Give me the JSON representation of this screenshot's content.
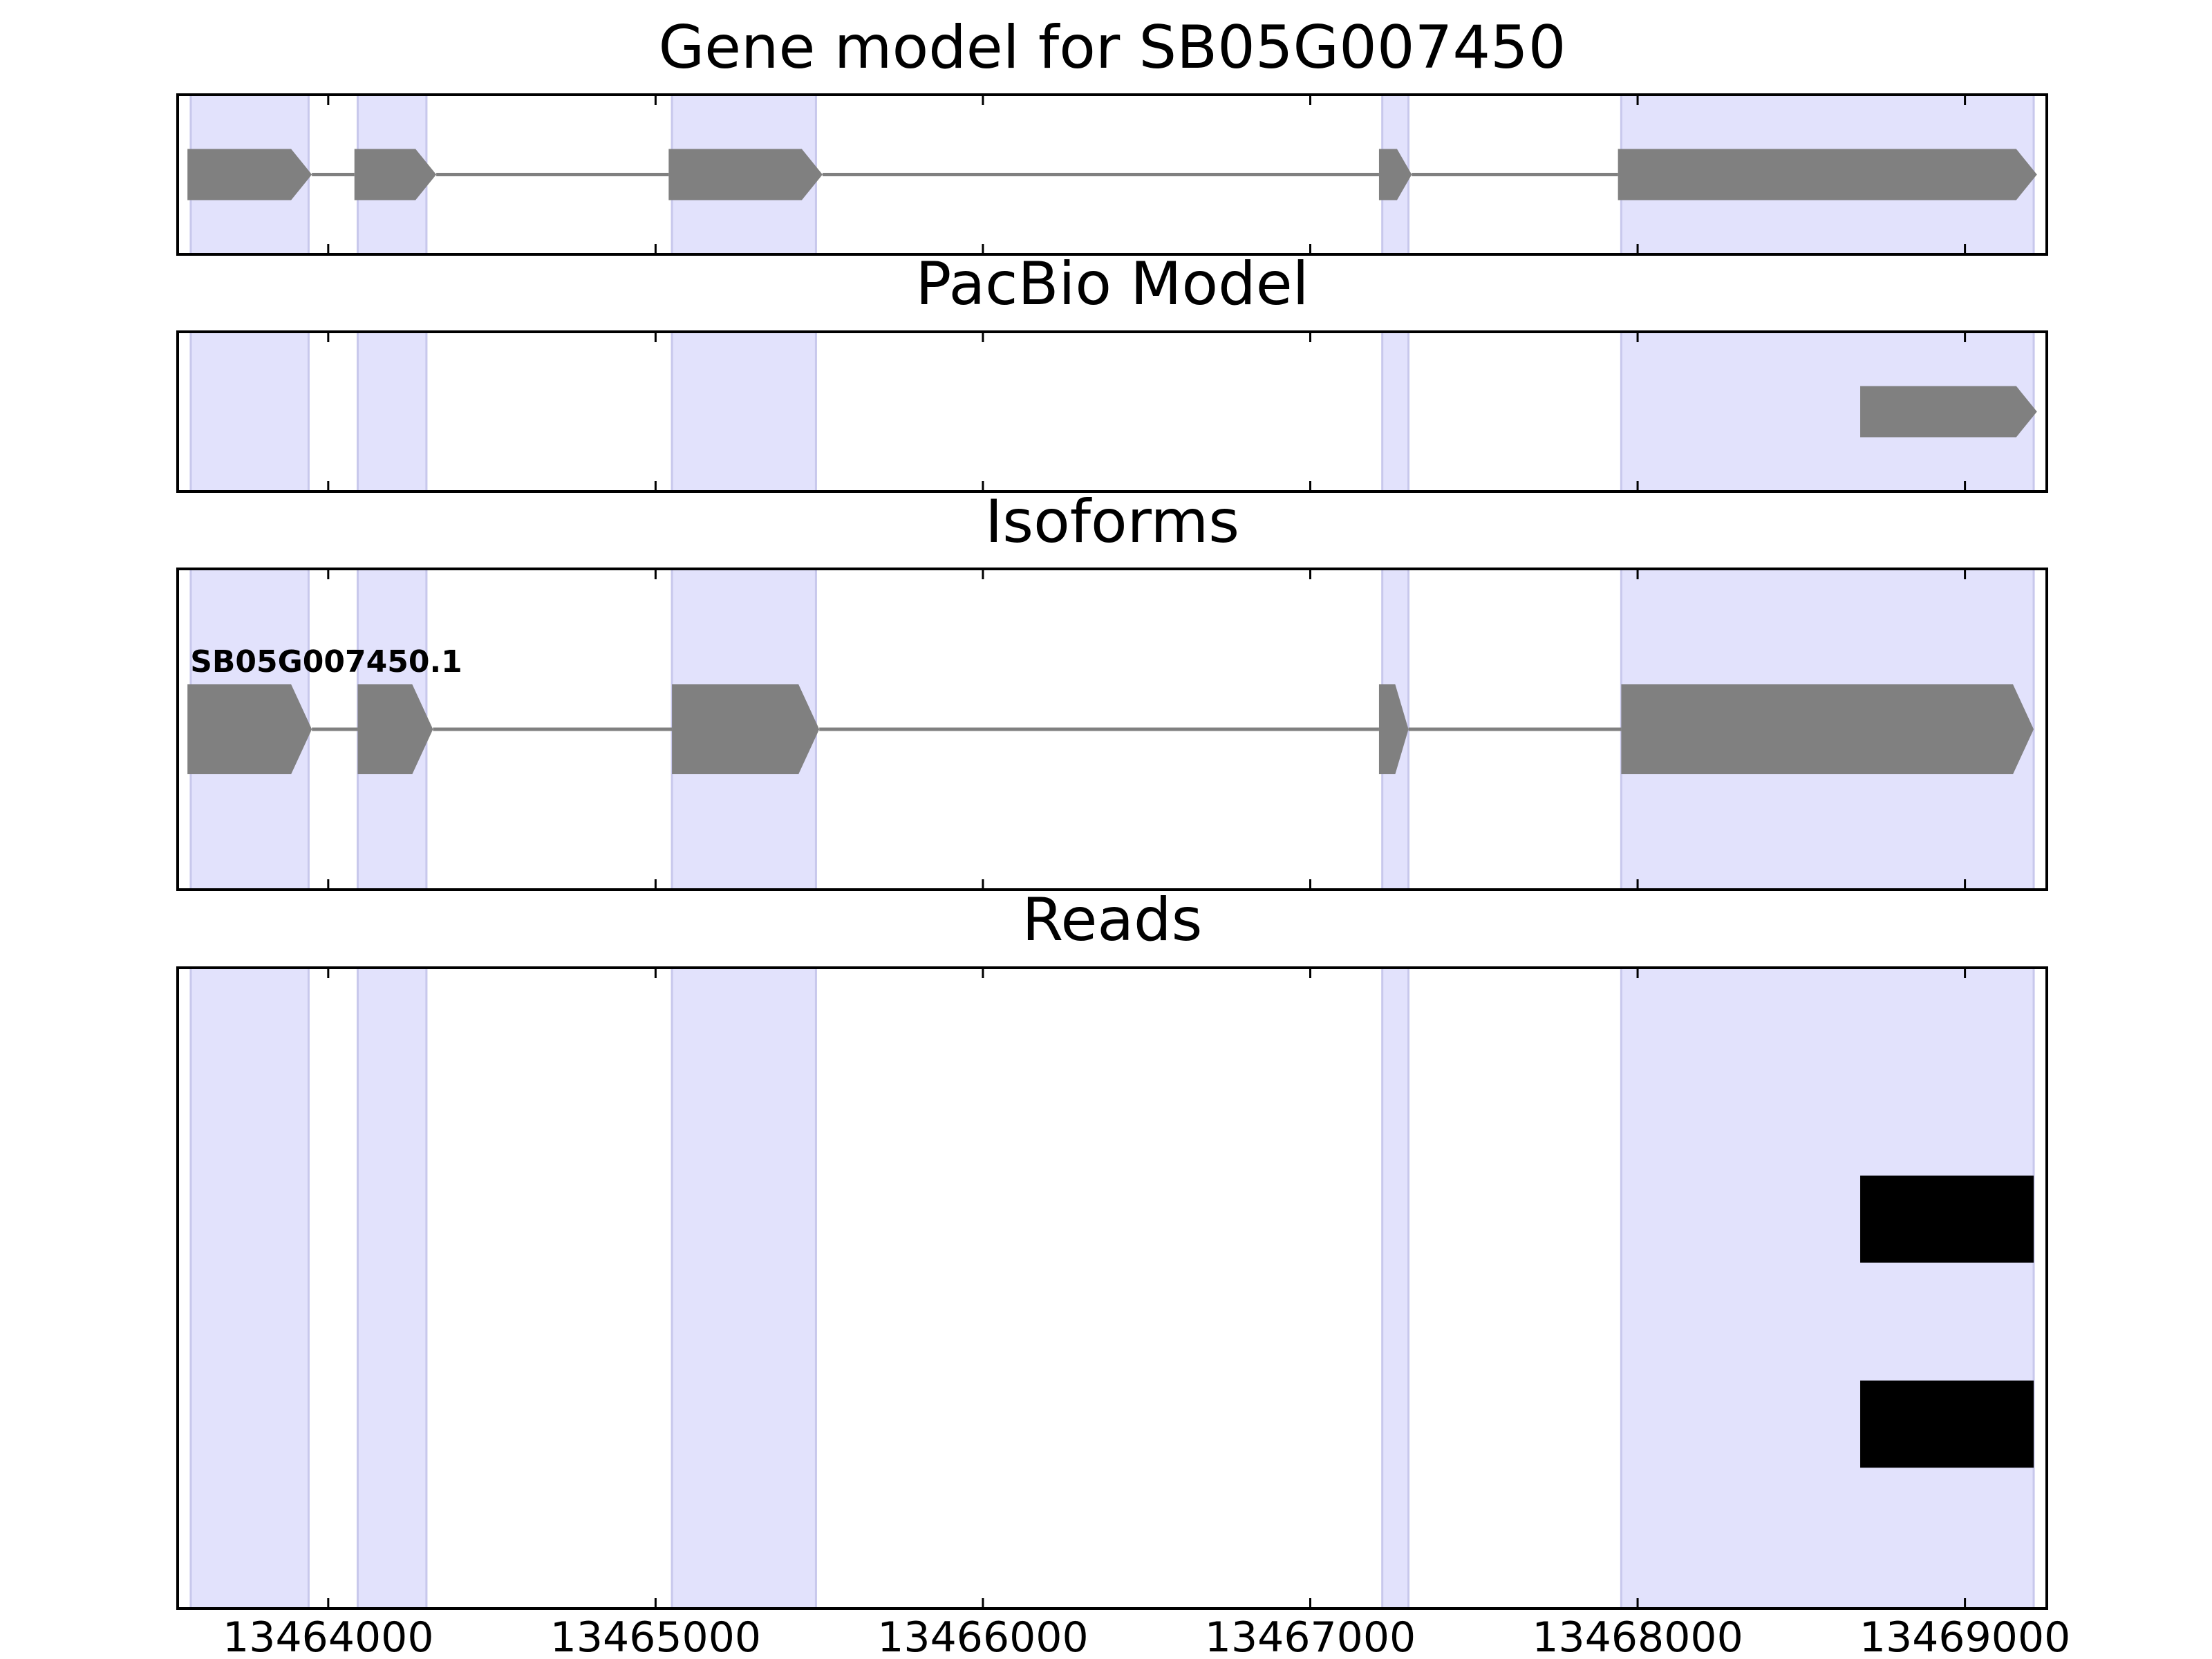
{
  "chart_data": [
    {
      "type": "gene-track",
      "title": "Gene model for SB05G007450",
      "xlim": [
        13463540,
        13469250
      ],
      "exon_shading": [
        [
          13463580,
          13463940
        ],
        [
          13464090,
          13464300
        ],
        [
          13465050,
          13465490
        ],
        [
          13467220,
          13467300
        ],
        [
          13467950,
          13469210
        ]
      ],
      "features": [
        {
          "name": "",
          "strand": "+",
          "exons": [
            [
              13463570,
              13463950
            ],
            [
              13464080,
              13464330
            ],
            [
              13465040,
              13465510
            ],
            [
              13467210,
              13467310
            ],
            [
              13467940,
              13469220
            ]
          ]
        }
      ]
    },
    {
      "type": "gene-track",
      "title": "PacBio Model",
      "xlim": [
        13463540,
        13469250
      ],
      "exon_shading": [
        [
          13463580,
          13463940
        ],
        [
          13464090,
          13464300
        ],
        [
          13465050,
          13465490
        ],
        [
          13467220,
          13467300
        ],
        [
          13467950,
          13469210
        ]
      ],
      "features": [
        {
          "name": "",
          "strand": "+",
          "exons": [
            [
              13468680,
              13469220
            ]
          ]
        }
      ]
    },
    {
      "type": "gene-track",
      "title": "Isoforms",
      "xlim": [
        13463540,
        13469250
      ],
      "exon_shading": [
        [
          13463580,
          13463940
        ],
        [
          13464090,
          13464300
        ],
        [
          13465050,
          13465490
        ],
        [
          13467220,
          13467300
        ],
        [
          13467950,
          13469210
        ]
      ],
      "features": [
        {
          "name": "SB05G007450.1",
          "strand": "+",
          "exons": [
            [
              13463570,
              13463950
            ],
            [
              13464090,
              13464320
            ],
            [
              13465050,
              13465500
            ],
            [
              13467210,
              13467300
            ],
            [
              13467950,
              13469210
            ]
          ]
        }
      ]
    },
    {
      "type": "gene-track",
      "title": "Reads",
      "xlim": [
        13463540,
        13469250
      ],
      "xticks": [
        13464000,
        13465000,
        13466000,
        13467000,
        13468000,
        13469000
      ],
      "exon_shading": [
        [
          13463580,
          13463940
        ],
        [
          13464090,
          13464300
        ],
        [
          13465050,
          13465490
        ],
        [
          13467220,
          13467300
        ],
        [
          13467950,
          13469210
        ]
      ],
      "reads": [
        [
          13468680,
          13469210
        ],
        [
          13468680,
          13469210
        ]
      ]
    }
  ],
  "colors": {
    "exon_fill": "#808080",
    "intron_line": "#808080",
    "shade_fill": "#e2e2fc",
    "shade_edge": "#c8c8ec",
    "read_fill": "#000000",
    "axis": "#000000"
  }
}
